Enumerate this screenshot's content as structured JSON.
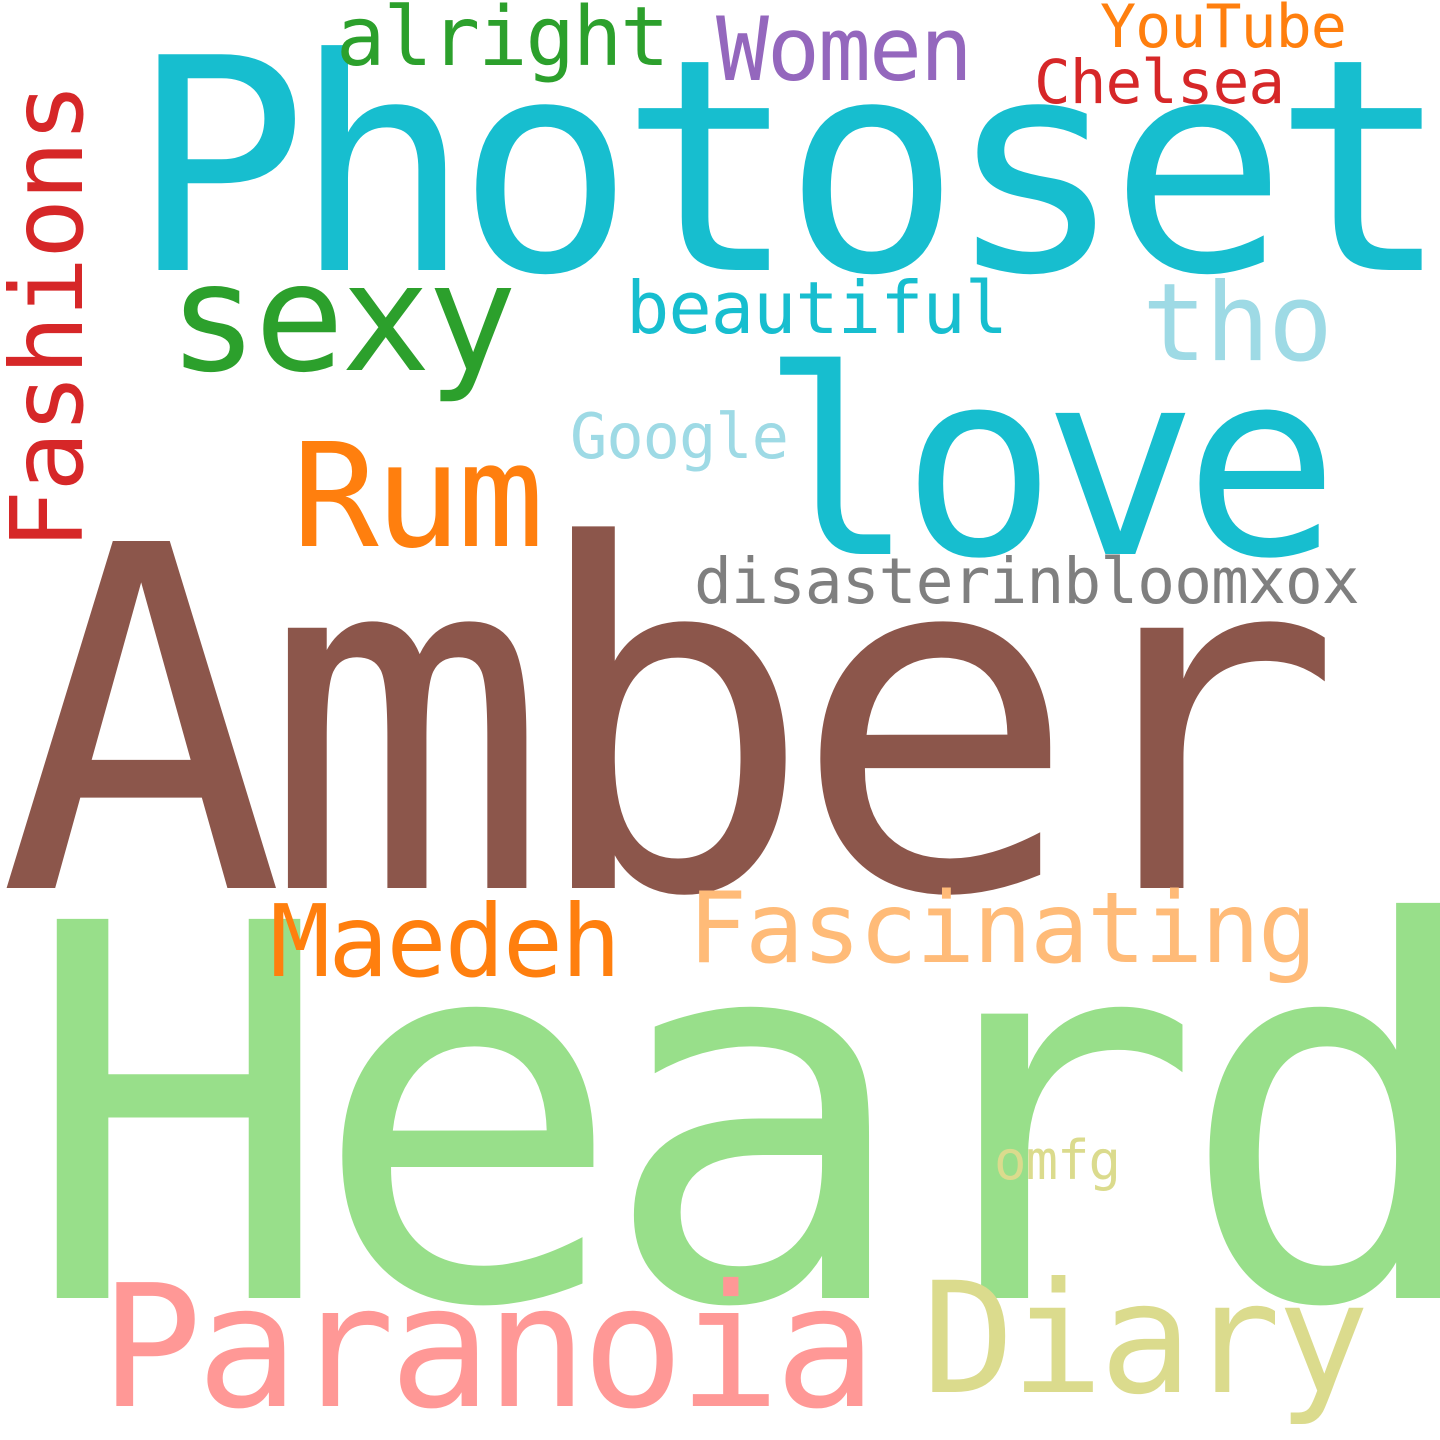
{
  "cloud": {
    "background": "#ffffff",
    "words": {
      "amber": {
        "text": "Amber",
        "color": "#8c564b",
        "orientation": "horizontal"
      },
      "heard": {
        "text": "Heard",
        "color": "#98df8a",
        "orientation": "horizontal"
      },
      "photoset": {
        "text": "Photoset",
        "color": "#17becf",
        "orientation": "horizontal"
      },
      "love": {
        "text": "love",
        "color": "#17becf",
        "orientation": "horizontal"
      },
      "sexy": {
        "text": "sexy",
        "color": "#2ca02c",
        "orientation": "horizontal"
      },
      "rum": {
        "text": "Rum",
        "color": "#ff7f0e",
        "orientation": "horizontal"
      },
      "paranoia": {
        "text": "Paranoia",
        "color": "#ff9896",
        "orientation": "horizontal"
      },
      "diary": {
        "text": "Diary",
        "color": "#dbdb8d",
        "orientation": "horizontal"
      },
      "fascinating": {
        "text": "Fascinating",
        "color": "#ffbb78",
        "orientation": "horizontal"
      },
      "maedeh": {
        "text": "Maedeh",
        "color": "#ff7f0e",
        "orientation": "horizontal"
      },
      "women": {
        "text": "Women",
        "color": "#9467bd",
        "orientation": "horizontal"
      },
      "alright": {
        "text": "alright",
        "color": "#2ca02c",
        "orientation": "horizontal"
      },
      "youtube": {
        "text": "YouTube",
        "color": "#ff7f0e",
        "orientation": "horizontal"
      },
      "chelsea": {
        "text": "Chelsea",
        "color": "#d62728",
        "orientation": "horizontal"
      },
      "tho": {
        "text": "tho",
        "color": "#9edae5",
        "orientation": "horizontal"
      },
      "beautiful": {
        "text": "beautiful",
        "color": "#17becf",
        "orientation": "horizontal"
      },
      "google": {
        "text": "Google",
        "color": "#9edae5",
        "orientation": "horizontal"
      },
      "disaster": {
        "text": "disasterinbloomxox",
        "color": "#7f7f7f",
        "orientation": "horizontal"
      },
      "omfg": {
        "text": "omfg",
        "color": "#dbdb8d",
        "orientation": "horizontal"
      },
      "fashions": {
        "text": "Fashions",
        "color": "#d62728",
        "orientation": "vertical"
      }
    }
  }
}
